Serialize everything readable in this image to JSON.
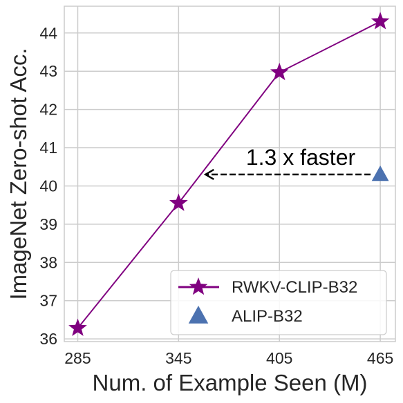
{
  "chart_data": {
    "type": "line",
    "title": "",
    "xlabel": "Num. of Example Seen (M)",
    "ylabel": "ImageNet Zero-shot Acc.",
    "x_ticks": [
      285,
      345,
      405,
      465
    ],
    "y_ticks": [
      36,
      37,
      38,
      39,
      40,
      41,
      42,
      43,
      44
    ],
    "xlim": [
      277,
      474
    ],
    "ylim": [
      35.93,
      44.7
    ],
    "grid": true,
    "legend_position": "lower-right",
    "series": [
      {
        "name": "RWKV-CLIP-B32",
        "marker": "star",
        "color": "#800080",
        "x": [
          285,
          345,
          405,
          465
        ],
        "y": [
          36.28,
          39.55,
          42.97,
          44.3
        ]
      },
      {
        "name": "ALIP-B32",
        "marker": "triangle",
        "color": "#4c72b0",
        "x": [
          465
        ],
        "y": [
          40.3
        ]
      }
    ],
    "annotations": [
      {
        "text": "1.3 x faster",
        "arrow_from": [
          465,
          40.3
        ],
        "arrow_to": [
          361,
          40.3
        ]
      }
    ]
  }
}
